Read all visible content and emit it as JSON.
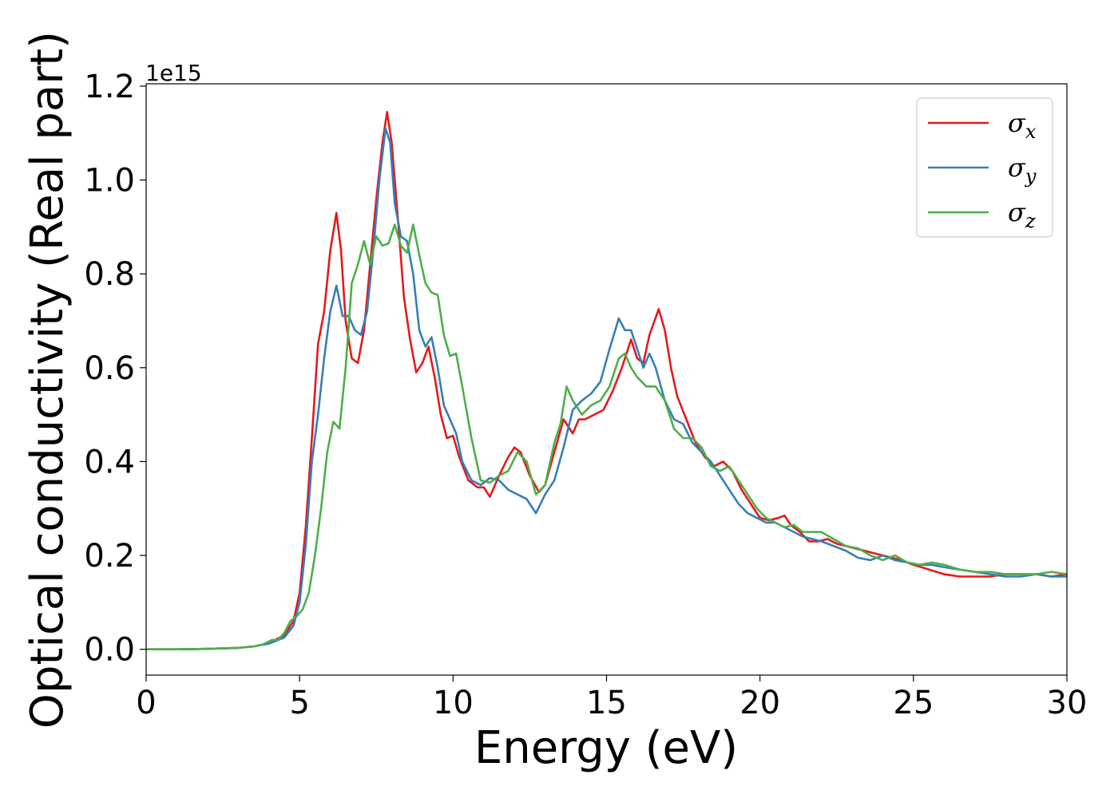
{
  "chart_data": {
    "type": "line",
    "title": "",
    "xlabel": "Energy (eV)",
    "ylabel": "Optical conductivity (Real part)",
    "y_offset_label": "1e15",
    "xlim": [
      0,
      30
    ],
    "ylim": [
      -0.055,
      1.205
    ],
    "xticks": [
      0,
      5,
      10,
      15,
      20,
      25,
      30
    ],
    "yticks": [
      0.0,
      0.2,
      0.4,
      0.6,
      0.8,
      1.0,
      1.2
    ],
    "xtick_labels": [
      "0",
      "5",
      "10",
      "15",
      "20",
      "25",
      "30"
    ],
    "ytick_labels": [
      "0.0",
      "0.2",
      "0.4",
      "0.6",
      "0.8",
      "1.0",
      "1.2"
    ],
    "grid": false,
    "legend_position": "top-right",
    "series": [
      {
        "name": "σx",
        "symbol": "σ",
        "sub": "x",
        "color": "#e41a1c",
        "x": [
          0,
          1,
          2,
          3,
          3.5,
          4,
          4.5,
          4.8,
          5.0,
          5.2,
          5.4,
          5.6,
          5.8,
          6.0,
          6.2,
          6.35,
          6.5,
          6.7,
          6.9,
          7.1,
          7.3,
          7.5,
          7.7,
          7.85,
          8.0,
          8.2,
          8.4,
          8.6,
          8.8,
          9.0,
          9.2,
          9.4,
          9.6,
          9.8,
          10.0,
          10.2,
          10.5,
          10.8,
          11.0,
          11.2,
          11.5,
          11.8,
          12.0,
          12.2,
          12.5,
          12.8,
          13.0,
          13.3,
          13.6,
          13.9,
          14.1,
          14.3,
          14.6,
          14.9,
          15.2,
          15.5,
          15.8,
          16.0,
          16.2,
          16.4,
          16.7,
          16.9,
          17.1,
          17.3,
          17.6,
          17.9,
          18.2,
          18.5,
          18.8,
          19.1,
          19.4,
          19.7,
          20.0,
          20.3,
          20.6,
          20.8,
          21.0,
          21.3,
          21.6,
          21.9,
          22.2,
          22.5,
          22.8,
          23.1,
          23.4,
          23.7,
          24.0,
          24.3,
          24.6,
          25.0,
          25.5,
          26.0,
          26.5,
          27.0,
          27.5,
          28.0,
          28.5,
          29.0,
          29.5,
          30
        ],
        "y": [
          0,
          0,
          0.001,
          0.003,
          0.006,
          0.013,
          0.03,
          0.06,
          0.12,
          0.26,
          0.45,
          0.65,
          0.72,
          0.85,
          0.93,
          0.85,
          0.7,
          0.62,
          0.61,
          0.68,
          0.82,
          0.96,
          1.08,
          1.145,
          1.08,
          0.92,
          0.75,
          0.66,
          0.59,
          0.61,
          0.645,
          0.58,
          0.5,
          0.45,
          0.455,
          0.41,
          0.36,
          0.345,
          0.345,
          0.325,
          0.37,
          0.41,
          0.43,
          0.42,
          0.37,
          0.335,
          0.35,
          0.42,
          0.49,
          0.46,
          0.49,
          0.49,
          0.5,
          0.51,
          0.55,
          0.6,
          0.66,
          0.62,
          0.61,
          0.67,
          0.725,
          0.68,
          0.6,
          0.54,
          0.49,
          0.44,
          0.41,
          0.39,
          0.4,
          0.38,
          0.34,
          0.31,
          0.28,
          0.275,
          0.28,
          0.285,
          0.265,
          0.25,
          0.23,
          0.23,
          0.235,
          0.225,
          0.22,
          0.215,
          0.21,
          0.205,
          0.2,
          0.195,
          0.19,
          0.18,
          0.17,
          0.16,
          0.155,
          0.155,
          0.155,
          0.16,
          0.16,
          0.16,
          0.155,
          0.16
        ]
      },
      {
        "name": "σy",
        "symbol": "σ",
        "sub": "y",
        "color": "#377eb8",
        "x": [
          0,
          1,
          2,
          3,
          3.5,
          4,
          4.5,
          4.8,
          5.0,
          5.2,
          5.4,
          5.6,
          5.8,
          6.0,
          6.2,
          6.4,
          6.6,
          6.8,
          7.0,
          7.2,
          7.4,
          7.6,
          7.8,
          7.95,
          8.1,
          8.3,
          8.5,
          8.7,
          8.9,
          9.1,
          9.3,
          9.5,
          9.7,
          9.9,
          10.1,
          10.3,
          10.6,
          10.9,
          11.2,
          11.5,
          11.8,
          12.1,
          12.4,
          12.7,
          13.0,
          13.3,
          13.6,
          13.9,
          14.2,
          14.5,
          14.8,
          15.1,
          15.4,
          15.6,
          15.8,
          16.0,
          16.2,
          16.4,
          16.6,
          16.9,
          17.2,
          17.5,
          17.8,
          18.1,
          18.4,
          18.7,
          19.0,
          19.3,
          19.6,
          19.9,
          20.2,
          20.5,
          20.8,
          21.1,
          21.4,
          21.7,
          22.0,
          22.4,
          22.8,
          23.2,
          23.6,
          24.0,
          24.4,
          24.8,
          25.2,
          25.6,
          26.0,
          26.5,
          27.0,
          27.5,
          28.0,
          28.5,
          29.0,
          29.5,
          30
        ],
        "y": [
          0,
          0,
          0.001,
          0.003,
          0.006,
          0.012,
          0.025,
          0.05,
          0.1,
          0.22,
          0.4,
          0.5,
          0.62,
          0.72,
          0.775,
          0.71,
          0.71,
          0.68,
          0.67,
          0.72,
          0.85,
          1.0,
          1.11,
          1.08,
          0.95,
          0.88,
          0.87,
          0.8,
          0.68,
          0.645,
          0.665,
          0.6,
          0.52,
          0.49,
          0.46,
          0.4,
          0.36,
          0.35,
          0.365,
          0.36,
          0.34,
          0.33,
          0.32,
          0.29,
          0.33,
          0.36,
          0.43,
          0.51,
          0.53,
          0.545,
          0.57,
          0.64,
          0.705,
          0.68,
          0.68,
          0.64,
          0.6,
          0.63,
          0.6,
          0.53,
          0.49,
          0.48,
          0.44,
          0.42,
          0.4,
          0.37,
          0.34,
          0.31,
          0.29,
          0.28,
          0.27,
          0.27,
          0.26,
          0.25,
          0.24,
          0.235,
          0.23,
          0.22,
          0.21,
          0.195,
          0.19,
          0.2,
          0.19,
          0.185,
          0.18,
          0.18,
          0.175,
          0.17,
          0.165,
          0.16,
          0.155,
          0.155,
          0.16,
          0.155,
          0.155
        ]
      },
      {
        "name": "σz",
        "symbol": "σ",
        "sub": "z",
        "color": "#4daf4a",
        "x": [
          0,
          1,
          2,
          3,
          3.5,
          3.8,
          4.1,
          4.3,
          4.5,
          4.7,
          4.9,
          5.1,
          5.3,
          5.5,
          5.7,
          5.9,
          6.1,
          6.3,
          6.5,
          6.7,
          6.9,
          7.1,
          7.3,
          7.5,
          7.7,
          7.9,
          8.1,
          8.3,
          8.5,
          8.7,
          8.9,
          9.1,
          9.3,
          9.5,
          9.7,
          9.9,
          10.1,
          10.3,
          10.6,
          10.9,
          11.2,
          11.5,
          11.8,
          12.1,
          12.4,
          12.7,
          13.0,
          13.3,
          13.5,
          13.7,
          13.9,
          14.2,
          14.5,
          14.8,
          15.1,
          15.4,
          15.6,
          15.8,
          16.0,
          16.3,
          16.6,
          16.9,
          17.2,
          17.5,
          17.8,
          18.1,
          18.4,
          18.7,
          19.0,
          19.3,
          19.6,
          19.9,
          20.2,
          20.5,
          20.8,
          21.1,
          21.4,
          21.7,
          22.0,
          22.4,
          22.8,
          23.2,
          23.6,
          24.0,
          24.4,
          24.8,
          25.2,
          25.6,
          26.0,
          26.5,
          27.0,
          27.5,
          28.0,
          28.5,
          29.0,
          29.5,
          30
        ],
        "y": [
          0,
          0,
          0.001,
          0.003,
          0.006,
          0.01,
          0.02,
          0.02,
          0.035,
          0.06,
          0.07,
          0.085,
          0.12,
          0.2,
          0.3,
          0.42,
          0.485,
          0.47,
          0.6,
          0.78,
          0.82,
          0.87,
          0.82,
          0.88,
          0.86,
          0.865,
          0.905,
          0.86,
          0.845,
          0.905,
          0.84,
          0.78,
          0.76,
          0.755,
          0.67,
          0.625,
          0.63,
          0.56,
          0.45,
          0.36,
          0.355,
          0.37,
          0.38,
          0.42,
          0.4,
          0.33,
          0.35,
          0.44,
          0.48,
          0.56,
          0.53,
          0.5,
          0.52,
          0.53,
          0.56,
          0.62,
          0.63,
          0.6,
          0.58,
          0.56,
          0.56,
          0.53,
          0.47,
          0.45,
          0.45,
          0.43,
          0.39,
          0.38,
          0.39,
          0.36,
          0.33,
          0.3,
          0.28,
          0.27,
          0.26,
          0.265,
          0.25,
          0.25,
          0.25,
          0.235,
          0.22,
          0.215,
          0.2,
          0.19,
          0.2,
          0.185,
          0.18,
          0.185,
          0.18,
          0.17,
          0.165,
          0.165,
          0.16,
          0.16,
          0.16,
          0.165,
          0.16
        ]
      }
    ]
  }
}
